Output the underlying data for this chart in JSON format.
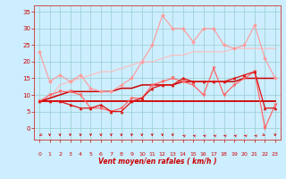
{
  "bg_color": "#cceeff",
  "grid_color": "#99cccc",
  "x_ticks": [
    0,
    1,
    2,
    3,
    4,
    5,
    6,
    7,
    8,
    9,
    10,
    11,
    12,
    13,
    14,
    15,
    16,
    17,
    18,
    19,
    20,
    21,
    22,
    23
  ],
  "xlabel": "Vent moyen/en rafales ( km/h )",
  "ylabel_ticks": [
    0,
    5,
    10,
    15,
    20,
    25,
    30,
    35
  ],
  "ylim": [
    -3.5,
    37
  ],
  "xlim": [
    -0.5,
    23.5
  ],
  "series": [
    {
      "color": "#ff9999",
      "linewidth": 0.8,
      "marker": "D",
      "markersize": 2.0,
      "data": [
        23,
        14,
        16,
        14,
        16,
        12,
        11,
        11,
        13,
        15,
        20,
        25,
        34,
        30,
        30,
        26,
        30,
        30,
        25,
        24,
        25,
        31,
        21,
        15
      ]
    },
    {
      "color": "#ffbbbb",
      "linewidth": 0.8,
      "marker": null,
      "markersize": 0,
      "data": [
        8,
        9,
        13,
        14,
        15,
        16,
        17,
        17,
        18,
        19,
        20,
        20,
        21,
        22,
        22,
        23,
        23,
        23,
        23,
        24,
        24,
        24,
        24,
        24
      ]
    },
    {
      "color": "#ff6666",
      "linewidth": 0.9,
      "marker": "v",
      "markersize": 2.5,
      "data": [
        8,
        10,
        11,
        11,
        10,
        6,
        6,
        5,
        6,
        9,
        9,
        13,
        14,
        15,
        14,
        13,
        10,
        18,
        10,
        13,
        15,
        17,
        0,
        7
      ]
    },
    {
      "color": "#cc0000",
      "linewidth": 1.3,
      "marker": null,
      "markersize": 0,
      "data": [
        8,
        8,
        8,
        8,
        8,
        8,
        8,
        8,
        8,
        8,
        8,
        8,
        8,
        8,
        8,
        8,
        8,
        8,
        8,
        8,
        8,
        8,
        8,
        8
      ]
    },
    {
      "color": "#cc0000",
      "linewidth": 1.1,
      "marker": null,
      "markersize": 0,
      "data": [
        8,
        9,
        10,
        11,
        11,
        11,
        11,
        11,
        12,
        12,
        13,
        13,
        13,
        13,
        14,
        14,
        14,
        14,
        14,
        14,
        15,
        15,
        15,
        15
      ]
    },
    {
      "color": "#dd1111",
      "linewidth": 0.9,
      "marker": "^",
      "markersize": 2.2,
      "data": [
        8,
        8,
        8,
        7,
        6,
        6,
        7,
        5,
        5,
        8,
        9,
        12,
        13,
        13,
        15,
        14,
        14,
        14,
        14,
        15,
        16,
        17,
        6,
        6
      ]
    }
  ],
  "wind_arrow_angles": [
    225,
    270,
    270,
    270,
    270,
    270,
    270,
    270,
    270,
    270,
    270,
    270,
    270,
    270,
    135,
    135,
    135,
    135,
    135,
    135,
    135,
    135,
    315,
    270
  ]
}
